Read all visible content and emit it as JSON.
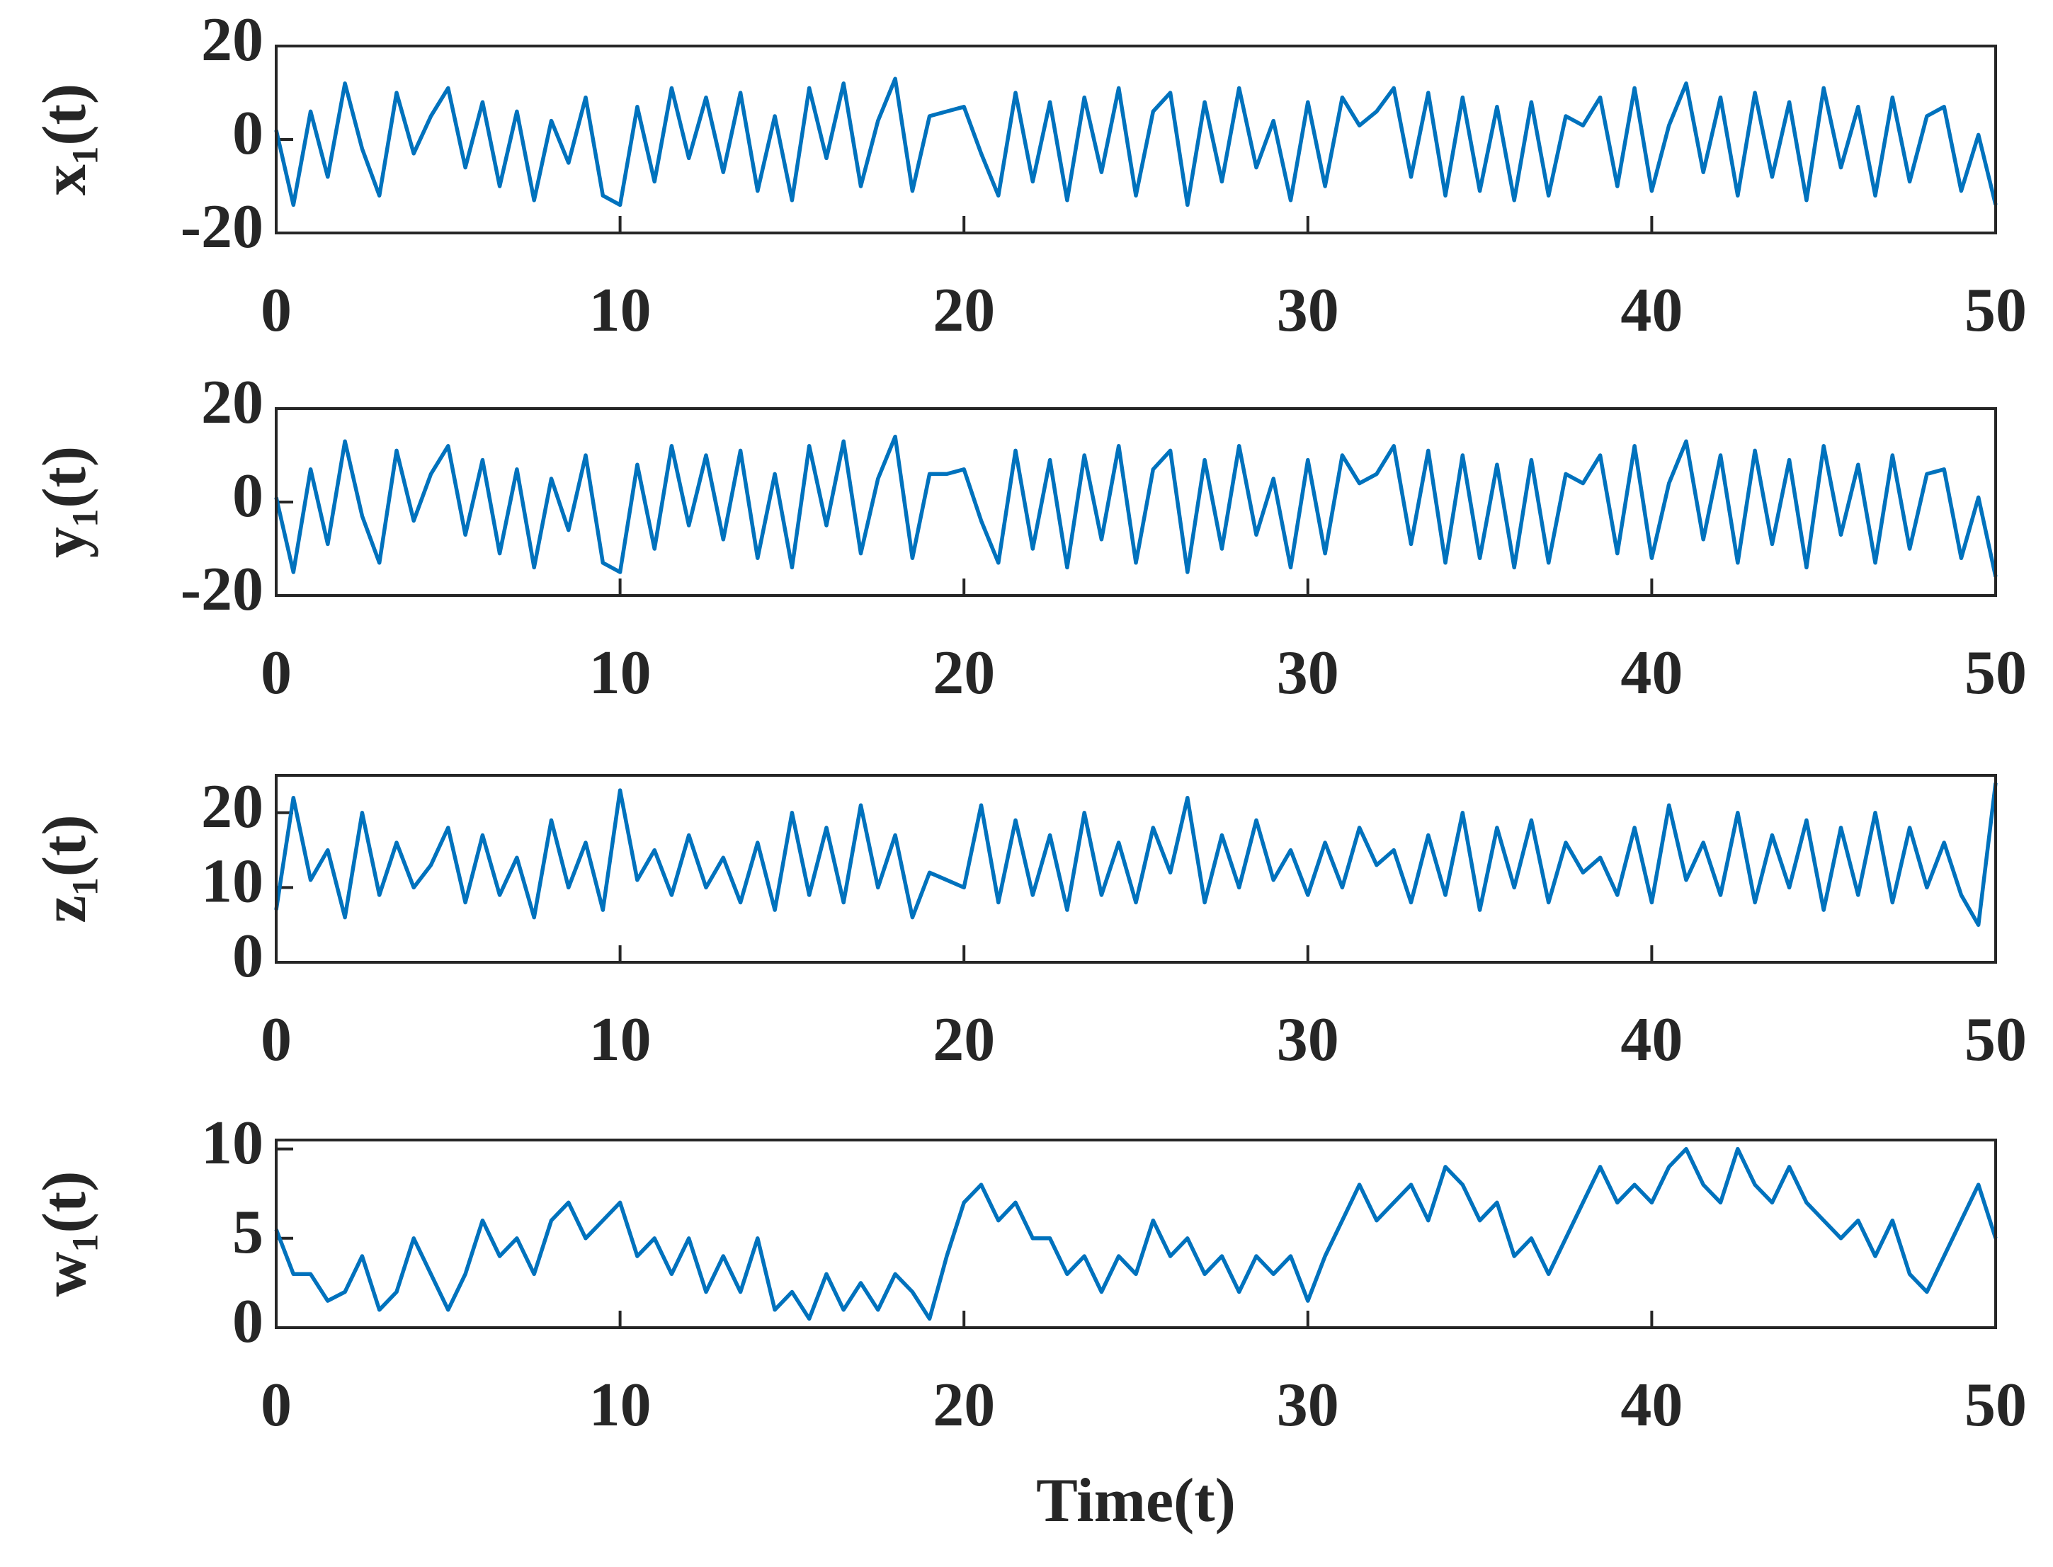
{
  "chart_data": [
    {
      "type": "line",
      "ylabel": "x₁(t)",
      "color": "#0072BD",
      "x": [
        0,
        0.5,
        1,
        1.5,
        2,
        2.5,
        3,
        3.5,
        4,
        4.5,
        5,
        5.5,
        6,
        6.5,
        7,
        7.5,
        8,
        8.5,
        9,
        9.5,
        10,
        10.5,
        11,
        11.5,
        12,
        12.5,
        13,
        13.5,
        14,
        14.5,
        15,
        15.5,
        16,
        16.5,
        17,
        17.5,
        18,
        18.5,
        19,
        19.5,
        20,
        20.5,
        21,
        21.5,
        22,
        22.5,
        23,
        23.5,
        24,
        24.5,
        25,
        25.5,
        26,
        26.5,
        27,
        27.5,
        28,
        28.5,
        29,
        29.5,
        30,
        30.5,
        31,
        31.5,
        32,
        32.5,
        33,
        33.5,
        34,
        34.5,
        35,
        35.5,
        36,
        36.5,
        37,
        37.5,
        38,
        38.5,
        39,
        39.5,
        40,
        40.5,
        41,
        41.5,
        42,
        42.5,
        43,
        43.5,
        44,
        44.5,
        45,
        45.5,
        46,
        46.5,
        47,
        47.5,
        48,
        48.5,
        49,
        49.5,
        50
      ],
      "values": [
        2,
        -14,
        6,
        -8,
        12,
        -2,
        -12,
        10,
        -3,
        5,
        11,
        -6,
        8,
        -10,
        6,
        -13,
        4,
        -5,
        9,
        -12,
        -14,
        7,
        -9,
        11,
        -4,
        9,
        -7,
        10,
        -11,
        5,
        -13,
        11,
        -4,
        12,
        -10,
        4,
        13,
        -11,
        5,
        6,
        7,
        -3,
        -12,
        10,
        -9,
        8,
        -13,
        9,
        -7,
        11,
        -12,
        6,
        10,
        -14,
        8,
        -9,
        11,
        -6,
        4,
        -13,
        8,
        -10,
        9,
        3,
        6,
        11,
        -8,
        10,
        -12,
        9,
        -11,
        7,
        -13,
        8,
        -12,
        5,
        3,
        9,
        -10,
        11,
        -11,
        3,
        12,
        -7,
        9,
        -12,
        10,
        -8,
        8,
        -13,
        11,
        -6,
        7,
        -12,
        9,
        -9,
        5,
        7,
        -11,
        1,
        -14
      ],
      "xlim": [
        0,
        50
      ],
      "xticks": [
        0,
        10,
        20,
        30,
        40,
        50
      ],
      "ylim": [
        -20,
        20
      ],
      "yticks": [
        -20,
        0,
        20
      ]
    },
    {
      "type": "line",
      "ylabel": "y₁(t)",
      "color": "#0072BD",
      "x": [
        0,
        0.5,
        1,
        1.5,
        2,
        2.5,
        3,
        3.5,
        4,
        4.5,
        5,
        5.5,
        6,
        6.5,
        7,
        7.5,
        8,
        8.5,
        9,
        9.5,
        10,
        10.5,
        11,
        11.5,
        12,
        12.5,
        13,
        13.5,
        14,
        14.5,
        15,
        15.5,
        16,
        16.5,
        17,
        17.5,
        18,
        18.5,
        19,
        19.5,
        20,
        20.5,
        21,
        21.5,
        22,
        22.5,
        23,
        23.5,
        24,
        24.5,
        25,
        25.5,
        26,
        26.5,
        27,
        27.5,
        28,
        28.5,
        29,
        29.5,
        30,
        30.5,
        31,
        31.5,
        32,
        32.5,
        33,
        33.5,
        34,
        34.5,
        35,
        35.5,
        36,
        36.5,
        37,
        37.5,
        38,
        38.5,
        39,
        39.5,
        40,
        40.5,
        41,
        41.5,
        42,
        42.5,
        43,
        43.5,
        44,
        44.5,
        45,
        45.5,
        46,
        46.5,
        47,
        47.5,
        48,
        48.5,
        49,
        49.5,
        50
      ],
      "values": [
        1,
        -15,
        7,
        -9,
        13,
        -3,
        -13,
        11,
        -4,
        6,
        12,
        -7,
        9,
        -11,
        7,
        -14,
        5,
        -6,
        10,
        -13,
        -15,
        8,
        -10,
        12,
        -5,
        10,
        -8,
        11,
        -12,
        6,
        -14,
        12,
        -5,
        13,
        -11,
        5,
        14,
        -12,
        6,
        6,
        7,
        -4,
        -13,
        11,
        -10,
        9,
        -14,
        10,
        -8,
        12,
        -13,
        7,
        11,
        -15,
        9,
        -10,
        12,
        -7,
        5,
        -14,
        9,
        -11,
        10,
        4,
        6,
        12,
        -9,
        11,
        -13,
        10,
        -12,
        8,
        -14,
        9,
        -13,
        6,
        4,
        10,
        -11,
        12,
        -12,
        4,
        13,
        -8,
        10,
        -13,
        11,
        -9,
        9,
        -14,
        12,
        -7,
        8,
        -13,
        10,
        -10,
        6,
        7,
        -12,
        1,
        -16
      ],
      "xlim": [
        0,
        50
      ],
      "xticks": [
        0,
        10,
        20,
        30,
        40,
        50
      ],
      "ylim": [
        -20,
        20
      ],
      "yticks": [
        -20,
        0,
        20
      ]
    },
    {
      "type": "line",
      "ylabel": "z₁(t)",
      "color": "#0072BD",
      "x": [
        0,
        0.5,
        1,
        1.5,
        2,
        2.5,
        3,
        3.5,
        4,
        4.5,
        5,
        5.5,
        6,
        6.5,
        7,
        7.5,
        8,
        8.5,
        9,
        9.5,
        10,
        10.5,
        11,
        11.5,
        12,
        12.5,
        13,
        13.5,
        14,
        14.5,
        15,
        15.5,
        16,
        16.5,
        17,
        17.5,
        18,
        18.5,
        19,
        19.5,
        20,
        20.5,
        21,
        21.5,
        22,
        22.5,
        23,
        23.5,
        24,
        24.5,
        25,
        25.5,
        26,
        26.5,
        27,
        27.5,
        28,
        28.5,
        29,
        29.5,
        30,
        30.5,
        31,
        31.5,
        32,
        32.5,
        33,
        33.5,
        34,
        34.5,
        35,
        35.5,
        36,
        36.5,
        37,
        37.5,
        38,
        38.5,
        39,
        39.5,
        40,
        40.5,
        41,
        41.5,
        42,
        42.5,
        43,
        43.5,
        44,
        44.5,
        45,
        45.5,
        46,
        46.5,
        47,
        47.5,
        48,
        48.5,
        49,
        49.5,
        50
      ],
      "values": [
        7,
        22,
        11,
        15,
        6,
        20,
        9,
        16,
        10,
        13,
        18,
        8,
        17,
        9,
        14,
        6,
        19,
        10,
        16,
        7,
        23,
        11,
        15,
        9,
        17,
        10,
        14,
        8,
        16,
        7,
        20,
        9,
        18,
        8,
        21,
        10,
        17,
        6,
        12,
        11,
        10,
        21,
        8,
        19,
        9,
        17,
        7,
        20,
        9,
        16,
        8,
        18,
        12,
        22,
        8,
        17,
        10,
        19,
        11,
        15,
        9,
        16,
        10,
        18,
        13,
        15,
        8,
        17,
        9,
        20,
        7,
        18,
        10,
        19,
        8,
        16,
        12,
        14,
        9,
        18,
        8,
        21,
        11,
        16,
        9,
        20,
        8,
        17,
        10,
        19,
        7,
        18,
        9,
        20,
        8,
        18,
        10,
        16,
        9,
        5,
        24
      ],
      "xlim": [
        0,
        50
      ],
      "xticks": [
        0,
        10,
        20,
        30,
        40,
        50
      ],
      "ylim": [
        0,
        25
      ],
      "yticks": [
        0,
        10,
        20
      ]
    },
    {
      "type": "line",
      "ylabel": "w₁(t)",
      "xlabel": "Time(t)",
      "color": "#0072BD",
      "x": [
        0,
        0.5,
        1,
        1.5,
        2,
        2.5,
        3,
        3.5,
        4,
        4.5,
        5,
        5.5,
        6,
        6.5,
        7,
        7.5,
        8,
        8.5,
        9,
        9.5,
        10,
        10.5,
        11,
        11.5,
        12,
        12.5,
        13,
        13.5,
        14,
        14.5,
        15,
        15.5,
        16,
        16.5,
        17,
        17.5,
        18,
        18.5,
        19,
        19.5,
        20,
        20.5,
        21,
        21.5,
        22,
        22.5,
        23,
        23.5,
        24,
        24.5,
        25,
        25.5,
        26,
        26.5,
        27,
        27.5,
        28,
        28.5,
        29,
        29.5,
        30,
        30.5,
        31,
        31.5,
        32,
        32.5,
        33,
        33.5,
        34,
        34.5,
        35,
        35.5,
        36,
        36.5,
        37,
        37.5,
        38,
        38.5,
        39,
        39.5,
        40,
        40.5,
        41,
        41.5,
        42,
        42.5,
        43,
        43.5,
        44,
        44.5,
        45,
        45.5,
        46,
        46.5,
        47,
        47.5,
        48,
        48.5,
        49,
        49.5,
        50
      ],
      "values": [
        5.5,
        3,
        3,
        1.5,
        2,
        4,
        1,
        2,
        5,
        3,
        1,
        3,
        6,
        4,
        5,
        3,
        6,
        7,
        5,
        6,
        7,
        4,
        5,
        3,
        5,
        2,
        4,
        2,
        5,
        1,
        2,
        0.5,
        3,
        1,
        2.5,
        1,
        3,
        2,
        0.5,
        4,
        7,
        8,
        6,
        7,
        5,
        5,
        3,
        4,
        2,
        4,
        3,
        6,
        4,
        5,
        3,
        4,
        2,
        4,
        3,
        4,
        1.5,
        4,
        6,
        8,
        6,
        7,
        8,
        6,
        9,
        8,
        6,
        7,
        4,
        5,
        3,
        5,
        7,
        9,
        7,
        8,
        7,
        9,
        10,
        8,
        7,
        10,
        8,
        7,
        9,
        7,
        6,
        5,
        6,
        4,
        6,
        3,
        2,
        4,
        6,
        8,
        5
      ],
      "xlim": [
        0,
        50
      ],
      "xticks": [
        0,
        10,
        20,
        30,
        40,
        50
      ],
      "ylim": [
        0,
        10.5
      ],
      "yticks": [
        0,
        5,
        10
      ]
    }
  ]
}
